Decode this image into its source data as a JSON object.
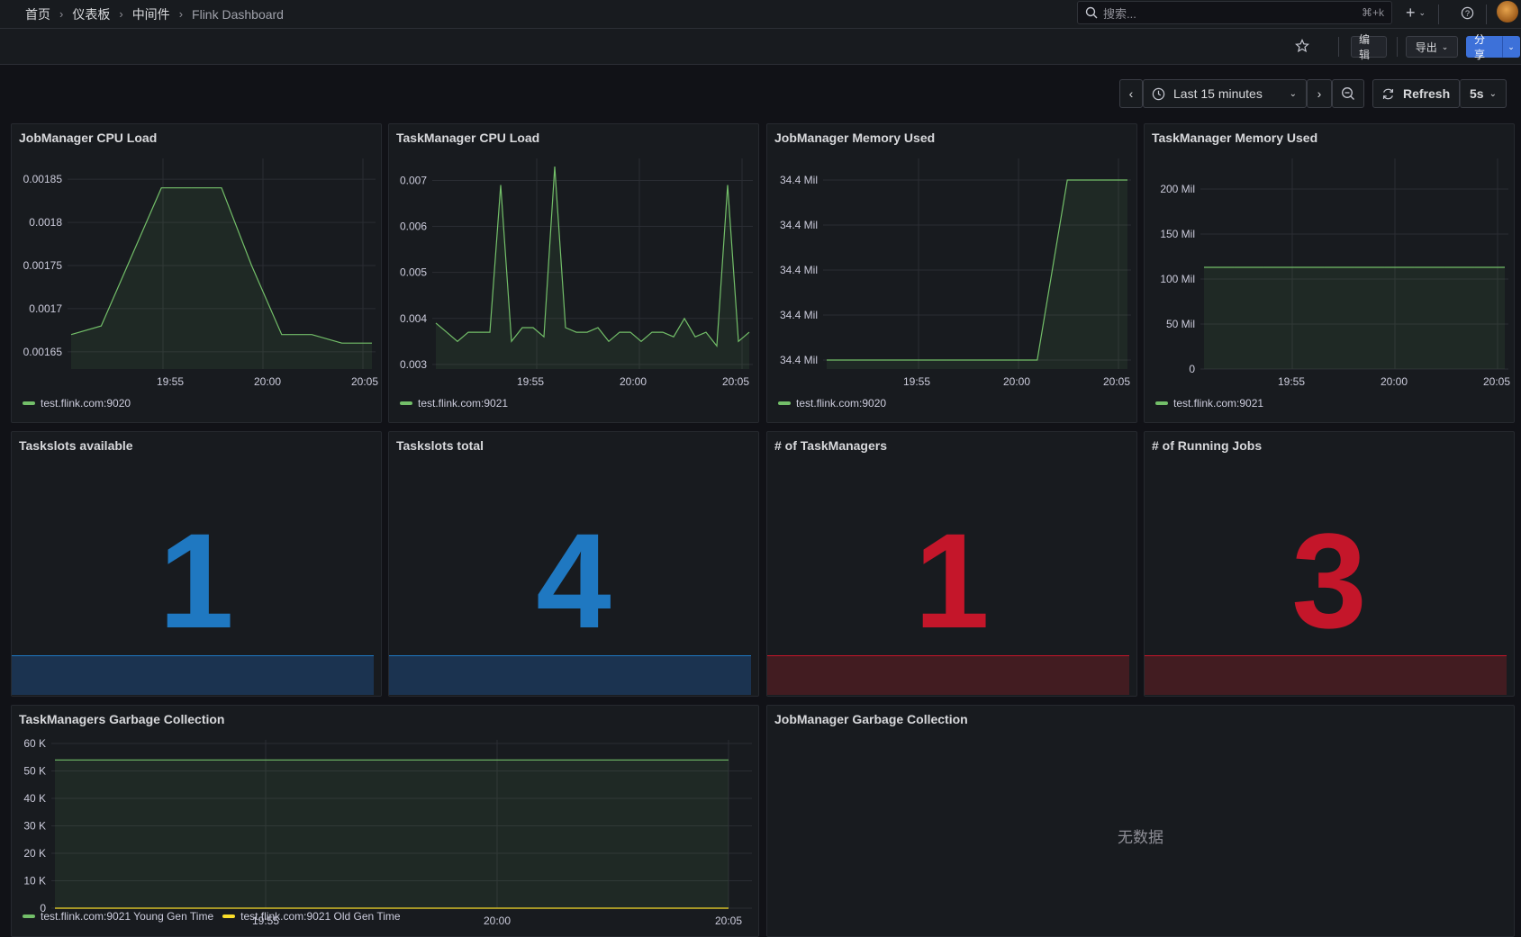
{
  "breadcrumb": [
    "首页",
    "仪表板",
    "中间件",
    "Flink Dashboard"
  ],
  "search": {
    "placeholder": "搜索...",
    "shortcut": "⌘+k"
  },
  "toolbar": {
    "edit": "编辑",
    "export": "导出",
    "share": "分享"
  },
  "timepicker": {
    "range": "Last 15 minutes",
    "refresh_label": "Refresh",
    "refresh_interval": "5s"
  },
  "colors": {
    "green": "#73bf69",
    "yellow": "#fade2a",
    "blue": "#1f78c1",
    "red": "#c4162a"
  },
  "panels": {
    "jm_cpu": {
      "title": "JobManager CPU Load",
      "legend": "test.flink.com:9020"
    },
    "tm_cpu": {
      "title": "TaskManager CPU Load",
      "legend": "test.flink.com:9021"
    },
    "jm_mem": {
      "title": "JobManager Memory Used",
      "legend": "test.flink.com:9020"
    },
    "tm_mem": {
      "title": "TaskManager Memory Used",
      "legend": "test.flink.com:9021"
    },
    "slots_avail": {
      "title": "Taskslots available",
      "value": "1",
      "color": "blue"
    },
    "slots_total": {
      "title": "Taskslots total",
      "value": "4",
      "color": "blue"
    },
    "num_tm": {
      "title": "# of TaskManagers",
      "value": "1",
      "color": "red"
    },
    "running_jobs": {
      "title": "# of Running Jobs",
      "value": "3",
      "color": "red"
    },
    "tm_gc": {
      "title": "TaskManagers Garbage Collection",
      "legend_young": "test.flink.com:9021 Young Gen Time",
      "legend_old": "test.flink.com:9021 Old Gen Time"
    },
    "jm_gc": {
      "title": "JobManager Garbage Collection",
      "no_data": "无数据"
    }
  },
  "chart_data": [
    {
      "type": "area",
      "title": "JobManager CPU Load",
      "x": [
        "19:51",
        "19:53",
        "19:54",
        "19:55",
        "19:56",
        "19:57",
        "19:58",
        "19:59",
        "20:00",
        "20:02",
        "20:05"
      ],
      "series": [
        {
          "name": "test.flink.com:9020",
          "values": [
            0.00167,
            0.00168,
            0.00176,
            0.00184,
            0.00184,
            0.00184,
            0.00175,
            0.00167,
            0.00167,
            0.00166,
            0.00166
          ]
        }
      ],
      "ylim": [
        0.00163,
        0.00187
      ],
      "yticks": [
        "0.00165",
        "0.0017",
        "0.00175",
        "0.0018",
        "0.00185"
      ],
      "xticks": [
        "19:55",
        "20:00",
        "20:05"
      ]
    },
    {
      "type": "area",
      "title": "TaskManager CPU Load",
      "series": [
        {
          "name": "test.flink.com:9021",
          "values": [
            0.0039,
            0.0037,
            0.0035,
            0.0037,
            0.0037,
            0.0037,
            0.0069,
            0.0035,
            0.0038,
            0.0038,
            0.0036,
            0.0073,
            0.0038,
            0.0037,
            0.0037,
            0.0038,
            0.0035,
            0.0037,
            0.0037,
            0.0035,
            0.0037,
            0.0037,
            0.0036,
            0.004,
            0.0036,
            0.0037,
            0.0034,
            0.0069,
            0.0035,
            0.0037
          ]
        }
      ],
      "ylim": [
        0.0029,
        0.0074
      ],
      "yticks": [
        "0.003",
        "0.004",
        "0.005",
        "0.006",
        "0.007"
      ],
      "xticks": [
        "19:55",
        "20:00",
        "20:05"
      ]
    },
    {
      "type": "area",
      "title": "JobManager Memory Used",
      "series": [
        {
          "name": "test.flink.com:9020",
          "values": [
            34.4,
            34.4,
            34.4,
            34.4,
            34.4,
            34.4,
            34.4,
            34.4,
            34.42,
            34.42,
            34.42
          ]
        }
      ],
      "yticks": [
        "34.4 Mil",
        "34.4 Mil",
        "34.4 Mil",
        "34.4 Mil",
        "34.4 Mil"
      ],
      "xticks": [
        "19:55",
        "20:00",
        "20:05"
      ]
    },
    {
      "type": "area",
      "title": "TaskManager Memory Used",
      "series": [
        {
          "name": "test.flink.com:9021",
          "values": [
            113,
            113,
            113,
            113,
            113,
            113,
            113,
            113,
            113,
            113,
            113
          ]
        }
      ],
      "ylim": [
        0,
        230
      ],
      "yticks": [
        "0",
        "50 Mil",
        "100 Mil",
        "150 Mil",
        "200 Mil"
      ],
      "xticks": [
        "19:55",
        "20:00",
        "20:05"
      ]
    },
    {
      "type": "area",
      "title": "TaskManagers Garbage Collection",
      "series": [
        {
          "name": "test.flink.com:9021 Young Gen Time",
          "values": [
            54000,
            54000,
            54000,
            54000,
            54000
          ]
        },
        {
          "name": "test.flink.com:9021 Old Gen Time",
          "values": [
            0,
            0,
            0,
            0,
            0
          ]
        }
      ],
      "ylim": [
        0,
        60000
      ],
      "yticks": [
        "0",
        "10 K",
        "20 K",
        "30 K",
        "40 K",
        "50 K",
        "60 K"
      ],
      "xticks": [
        "19:55",
        "20:00",
        "20:05"
      ]
    }
  ]
}
